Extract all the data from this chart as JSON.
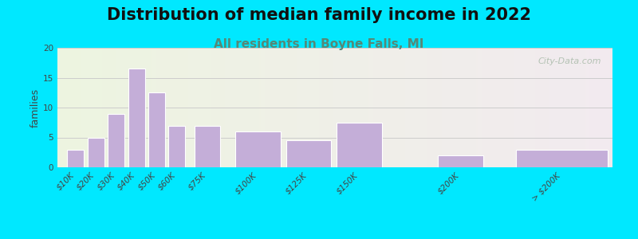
{
  "title": "Distribution of median family income in 2022",
  "subtitle": "All residents in Boyne Falls, MI",
  "ylabel": "families",
  "bar_color": "#c4aed8",
  "bar_edge_color": "#ffffff",
  "background_outer": "#00e8ff",
  "background_inner": "#eef5e6",
  "background_inner_right": "#f5f0f5",
  "ylim": [
    0,
    20
  ],
  "yticks": [
    0,
    5,
    10,
    15,
    20
  ],
  "grid_color": "#cccccc",
  "title_fontsize": 15,
  "subtitle_fontsize": 11,
  "ylabel_fontsize": 9,
  "tick_fontsize": 7.5,
  "watermark_text": "City-Data.com",
  "watermark_color": "#aabbaa",
  "title_color": "#111111",
  "subtitle_color": "#558877",
  "bar_positions": [
    10,
    20,
    30,
    40,
    50,
    60,
    75,
    100,
    125,
    150,
    200,
    250
  ],
  "bar_widths": [
    9,
    9,
    9,
    9,
    9,
    9,
    14,
    24,
    24,
    24,
    24,
    49
  ],
  "bar_values": [
    3,
    5,
    9,
    16.5,
    12.5,
    7,
    7,
    6,
    4.5,
    7.5,
    2,
    3
  ],
  "tick_positions": [
    10,
    20,
    30,
    40,
    50,
    60,
    75,
    100,
    125,
    150,
    200,
    250
  ],
  "tick_labels": [
    "$10K",
    "$20K",
    "$30K",
    "$40K",
    "$50K",
    "$60K",
    "$75K",
    "$100K",
    "$125K",
    "$150K",
    "$200K",
    "> $200K"
  ],
  "xlim": [
    1,
    275
  ]
}
